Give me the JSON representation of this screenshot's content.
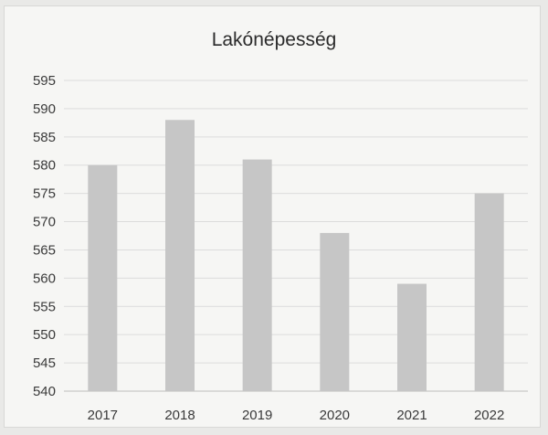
{
  "chart_data": {
    "type": "bar",
    "title": "Lakónépesség",
    "xlabel": "",
    "ylabel": "",
    "categories": [
      "2017",
      "2018",
      "2019",
      "2020",
      "2021",
      "2022"
    ],
    "values": [
      580,
      588,
      581,
      568,
      559,
      575
    ],
    "ylim": [
      540,
      595
    ],
    "yticks": [
      540,
      545,
      550,
      555,
      560,
      565,
      570,
      575,
      580,
      585,
      590,
      595
    ],
    "grid": true,
    "legend": "none",
    "colors": {
      "bar": "#c6c6c6",
      "grid": "#dcdcdc",
      "axis": "#bdbdbd"
    }
  }
}
